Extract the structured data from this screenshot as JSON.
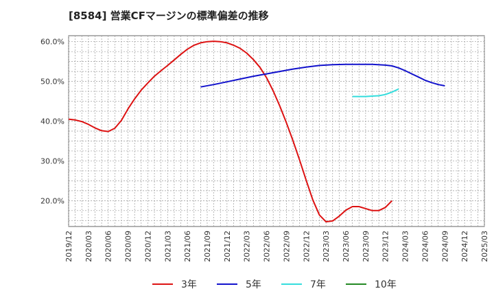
{
  "chart_data": {
    "type": "line",
    "title": "[8584]  営業CFマージンの標準偏差の推移",
    "xlabel": "",
    "ylabel": "",
    "x_start": "2019/12",
    "x_end": "2025/03",
    "ylim": [
      13.5,
      61.5
    ],
    "y_ticks": [
      "20.0%",
      "30.0%",
      "40.0%",
      "50.0%",
      "60.0%"
    ],
    "y_tick_values": [
      20,
      30,
      40,
      50,
      60
    ],
    "x_ticks": [
      "2019/12",
      "2020/03",
      "2020/06",
      "2020/09",
      "2020/12",
      "2021/03",
      "2021/06",
      "2021/09",
      "2021/12",
      "2022/03",
      "2022/06",
      "2022/09",
      "2022/12",
      "2023/03",
      "2023/06",
      "2023/09",
      "2023/12",
      "2024/03",
      "2024/06",
      "2024/09",
      "2024/12",
      "2025/03"
    ],
    "grid": true,
    "legend_position": "bottom",
    "series": [
      {
        "name": "3年",
        "color": "#dd1111",
        "points": [
          [
            "2019/12",
            40.5
          ],
          [
            "2020/01",
            40.3
          ],
          [
            "2020/02",
            39.9
          ],
          [
            "2020/03",
            39.2
          ],
          [
            "2020/04",
            38.3
          ],
          [
            "2020/05",
            37.6
          ],
          [
            "2020/06",
            37.4
          ],
          [
            "2020/07",
            38.2
          ],
          [
            "2020/08",
            40.2
          ],
          [
            "2020/09",
            43.1
          ],
          [
            "2020/10",
            45.6
          ],
          [
            "2020/11",
            47.8
          ],
          [
            "2020/12",
            49.6
          ],
          [
            "2021/01",
            51.3
          ],
          [
            "2021/02",
            52.7
          ],
          [
            "2021/03",
            54.0
          ],
          [
            "2021/04",
            55.4
          ],
          [
            "2021/05",
            56.8
          ],
          [
            "2021/06",
            58.1
          ],
          [
            "2021/07",
            59.1
          ],
          [
            "2021/08",
            59.7
          ],
          [
            "2021/09",
            60.0
          ],
          [
            "2021/10",
            60.1
          ],
          [
            "2021/11",
            60.0
          ],
          [
            "2021/12",
            59.7
          ],
          [
            "2022/01",
            59.1
          ],
          [
            "2022/02",
            58.3
          ],
          [
            "2022/03",
            57.1
          ],
          [
            "2022/04",
            55.5
          ],
          [
            "2022/05",
            53.5
          ],
          [
            "2022/06",
            50.9
          ],
          [
            "2022/07",
            47.6
          ],
          [
            "2022/08",
            43.8
          ],
          [
            "2022/09",
            39.6
          ],
          [
            "2022/10",
            35.1
          ],
          [
            "2022/11",
            30.2
          ],
          [
            "2022/12",
            25.1
          ],
          [
            "2023/01",
            20.2
          ],
          [
            "2023/02",
            16.4
          ],
          [
            "2023/03",
            14.7
          ],
          [
            "2023/04",
            14.9
          ],
          [
            "2023/05",
            16.1
          ],
          [
            "2023/06",
            17.6
          ],
          [
            "2023/07",
            18.5
          ],
          [
            "2023/08",
            18.5
          ],
          [
            "2023/09",
            18.0
          ],
          [
            "2023/10",
            17.5
          ],
          [
            "2023/11",
            17.5
          ],
          [
            "2023/12",
            18.3
          ],
          [
            "2024/01",
            20.0
          ]
        ]
      },
      {
        "name": "5年",
        "color": "#1111cc",
        "points": [
          [
            "2021/08",
            48.6
          ],
          [
            "2021/10",
            49.2
          ],
          [
            "2021/12",
            49.9
          ],
          [
            "2022/02",
            50.6
          ],
          [
            "2022/04",
            51.3
          ],
          [
            "2022/06",
            51.9
          ],
          [
            "2022/08",
            52.5
          ],
          [
            "2022/10",
            53.1
          ],
          [
            "2022/12",
            53.6
          ],
          [
            "2023/02",
            54.0
          ],
          [
            "2023/04",
            54.2
          ],
          [
            "2023/06",
            54.3
          ],
          [
            "2023/08",
            54.3
          ],
          [
            "2023/10",
            54.3
          ],
          [
            "2023/12",
            54.1
          ],
          [
            "2024/01",
            53.9
          ],
          [
            "2024/02",
            53.4
          ],
          [
            "2024/03",
            52.7
          ],
          [
            "2024/04",
            51.9
          ],
          [
            "2024/05",
            51.1
          ],
          [
            "2024/06",
            50.3
          ],
          [
            "2024/07",
            49.7
          ],
          [
            "2024/08",
            49.2
          ],
          [
            "2024/09",
            48.9
          ]
        ]
      },
      {
        "name": "7年",
        "color": "#33dddd",
        "points": [
          [
            "2023/07",
            46.2
          ],
          [
            "2023/08",
            46.2
          ],
          [
            "2023/09",
            46.2
          ],
          [
            "2023/10",
            46.3
          ],
          [
            "2023/11",
            46.4
          ],
          [
            "2023/12",
            46.7
          ],
          [
            "2024/01",
            47.3
          ],
          [
            "2024/02",
            48.1
          ]
        ]
      },
      {
        "name": "10年",
        "color": "#228822",
        "points": []
      }
    ]
  }
}
